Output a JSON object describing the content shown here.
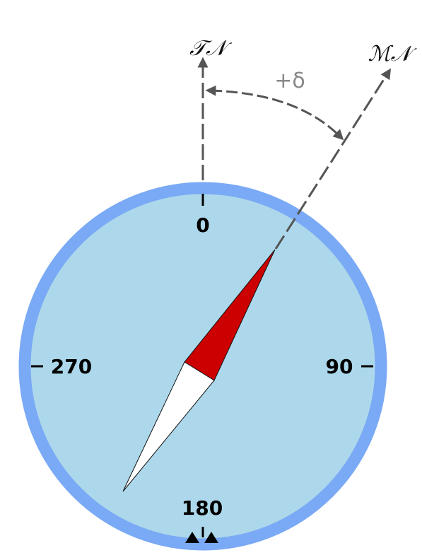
{
  "labels": {
    "true_north": "𝒯𝒩",
    "magnetic_north": "ℳ𝒩",
    "declination": "+δ"
  },
  "dial": {
    "north": "0",
    "east": "90",
    "south": "180",
    "west": "270"
  },
  "colors": {
    "dial_fill": "#add8eb",
    "dial_ring": "#7aa9f5",
    "needle_north": "#cc0000",
    "needle_south": "#ffffff",
    "guide_lines": "#555555",
    "declination_text": "#888888"
  },
  "icons": [
    "lubber-line-triangles-icon"
  ]
}
